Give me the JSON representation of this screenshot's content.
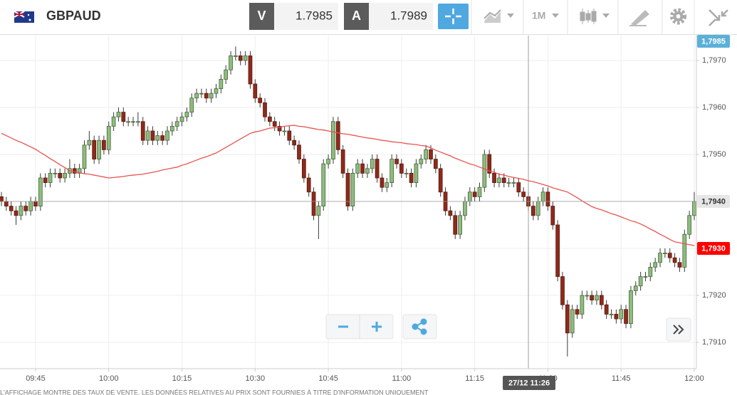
{
  "toolbar": {
    "symbol": "GBPAUD",
    "sell": {
      "label": "V",
      "price": "1.7985"
    },
    "buy": {
      "label": "A",
      "price": "1.7989"
    },
    "timeframe": "1M"
  },
  "chart_data": {
    "type": "candlestick",
    "categories": [
      null,
      null,
      null,
      null,
      null,
      null,
      null,
      "09:45",
      null,
      null,
      null,
      null,
      null,
      null,
      null,
      null,
      null,
      null,
      null,
      null,
      null,
      null,
      "10:00",
      null,
      null,
      null,
      null,
      null,
      null,
      null,
      null,
      null,
      null,
      null,
      null,
      null,
      null,
      "10:15",
      null,
      null,
      null,
      null,
      null,
      null,
      null,
      null,
      null,
      null,
      null,
      null,
      null,
      null,
      "10:30",
      null,
      null,
      null,
      null,
      null,
      null,
      null,
      null,
      null,
      null,
      null,
      null,
      null,
      null,
      "10:45",
      null,
      null,
      null,
      null,
      null,
      null,
      null,
      null,
      null,
      null,
      null,
      null,
      null,
      null,
      "11:00",
      null,
      null,
      null,
      null,
      null,
      null,
      null,
      null,
      null,
      null,
      null,
      null,
      null,
      null,
      "11:15",
      null,
      null,
      null,
      null,
      null,
      null,
      null,
      null,
      null,
      null,
      null,
      null,
      null,
      null,
      "11:30",
      null,
      null,
      null,
      null,
      null,
      null,
      null,
      null,
      null,
      null,
      null,
      null,
      null,
      null,
      "11:45",
      null,
      null,
      null,
      null,
      null,
      null,
      null,
      null,
      null,
      null,
      null,
      null,
      null,
      null,
      "12:00"
    ],
    "ohlc": [
      [
        1.7941,
        1.7942,
        1.7939,
        1.794
      ],
      [
        1.794,
        1.7941,
        1.7938,
        1.7939
      ],
      [
        1.7939,
        1.794,
        1.7937,
        1.7938
      ],
      [
        1.7938,
        1.7939,
        1.7935,
        1.7937
      ],
      [
        1.7937,
        1.794,
        1.7936,
        1.7939
      ],
      [
        1.7939,
        1.794,
        1.7937,
        1.7938
      ],
      [
        1.7938,
        1.7941,
        1.7937,
        1.794
      ],
      [
        1.794,
        1.7941,
        1.7938,
        1.7939
      ],
      [
        1.7939,
        1.7946,
        1.7938,
        1.7945
      ],
      [
        1.7945,
        1.7946,
        1.7943,
        1.7944
      ],
      [
        1.7944,
        1.7947,
        1.7943,
        1.7946
      ],
      [
        1.7946,
        1.7947,
        1.7945,
        1.7946
      ],
      [
        1.7946,
        1.7947,
        1.7944,
        1.7945
      ],
      [
        1.7945,
        1.7947,
        1.7944,
        1.7946
      ],
      [
        1.7946,
        1.7949,
        1.7945,
        1.7947
      ],
      [
        1.7947,
        1.7948,
        1.7945,
        1.7946
      ],
      [
        1.7946,
        1.7948,
        1.7945,
        1.7947
      ],
      [
        1.7947,
        1.7953,
        1.7946,
        1.7952
      ],
      [
        1.7952,
        1.7955,
        1.7951,
        1.7953
      ],
      [
        1.7953,
        1.7954,
        1.7948,
        1.7949
      ],
      [
        1.7949,
        1.7954,
        1.7948,
        1.7953
      ],
      [
        1.7953,
        1.7954,
        1.795,
        1.7951
      ],
      [
        1.7951,
        1.7957,
        1.795,
        1.7956
      ],
      [
        1.7956,
        1.7959,
        1.7955,
        1.7958
      ],
      [
        1.7958,
        1.796,
        1.7957,
        1.7959
      ],
      [
        1.7959,
        1.796,
        1.7956,
        1.7957
      ],
      [
        1.7957,
        1.7958,
        1.7956,
        1.7957
      ],
      [
        1.7957,
        1.7958,
        1.7956,
        1.7957
      ],
      [
        1.7957,
        1.7959,
        1.7956,
        1.7957
      ],
      [
        1.7957,
        1.7958,
        1.7952,
        1.7953
      ],
      [
        1.7953,
        1.7956,
        1.7952,
        1.7955
      ],
      [
        1.7955,
        1.7956,
        1.7952,
        1.7953
      ],
      [
        1.7953,
        1.7955,
        1.7952,
        1.7954
      ],
      [
        1.7954,
        1.7955,
        1.7952,
        1.7953
      ],
      [
        1.7953,
        1.7956,
        1.7952,
        1.7955
      ],
      [
        1.7955,
        1.7957,
        1.7954,
        1.7956
      ],
      [
        1.7956,
        1.7958,
        1.7955,
        1.7957
      ],
      [
        1.7957,
        1.7959,
        1.7956,
        1.7958
      ],
      [
        1.7958,
        1.796,
        1.7957,
        1.7959
      ],
      [
        1.7959,
        1.7963,
        1.7958,
        1.7962
      ],
      [
        1.7962,
        1.7964,
        1.7961,
        1.7963
      ],
      [
        1.7963,
        1.7964,
        1.7962,
        1.7963
      ],
      [
        1.7963,
        1.7964,
        1.7961,
        1.7962
      ],
      [
        1.7962,
        1.7964,
        1.7961,
        1.7963
      ],
      [
        1.7963,
        1.7965,
        1.7962,
        1.7964
      ],
      [
        1.7964,
        1.7967,
        1.7963,
        1.7966
      ],
      [
        1.7966,
        1.7969,
        1.7965,
        1.7968
      ],
      [
        1.7968,
        1.7972,
        1.7967,
        1.7971
      ],
      [
        1.7971,
        1.7973,
        1.797,
        1.7971
      ],
      [
        1.7971,
        1.7972,
        1.7969,
        1.797
      ],
      [
        1.797,
        1.7972,
        1.7969,
        1.7971
      ],
      [
        1.7971,
        1.7972,
        1.7964,
        1.7965
      ],
      [
        1.7965,
        1.7966,
        1.7961,
        1.7962
      ],
      [
        1.7962,
        1.7963,
        1.796,
        1.7961
      ],
      [
        1.7961,
        1.7962,
        1.7957,
        1.7958
      ],
      [
        1.7958,
        1.7959,
        1.7956,
        1.7957
      ],
      [
        1.7957,
        1.7958,
        1.7955,
        1.7956
      ],
      [
        1.7956,
        1.7957,
        1.7954,
        1.7955
      ],
      [
        1.7955,
        1.7956,
        1.7954,
        1.7955
      ],
      [
        1.7955,
        1.7956,
        1.7952,
        1.7953
      ],
      [
        1.7953,
        1.7954,
        1.7951,
        1.7952
      ],
      [
        1.7952,
        1.7953,
        1.7948,
        1.7949
      ],
      [
        1.7949,
        1.795,
        1.7944,
        1.7945
      ],
      [
        1.7945,
        1.7946,
        1.7941,
        1.7942
      ],
      [
        1.7942,
        1.7943,
        1.7936,
        1.7937
      ],
      [
        1.7937,
        1.794,
        1.7932,
        1.7939
      ],
      [
        1.7939,
        1.7949,
        1.7938,
        1.7948
      ],
      [
        1.7948,
        1.795,
        1.7947,
        1.7949
      ],
      [
        1.7949,
        1.7958,
        1.7948,
        1.7957
      ],
      [
        1.7957,
        1.7958,
        1.795,
        1.7951
      ],
      [
        1.7951,
        1.7952,
        1.7945,
        1.7946
      ],
      [
        1.7946,
        1.7947,
        1.7938,
        1.7939
      ],
      [
        1.7939,
        1.7947,
        1.7938,
        1.7946
      ],
      [
        1.7946,
        1.7949,
        1.7945,
        1.7948
      ],
      [
        1.7948,
        1.7949,
        1.7945,
        1.7946
      ],
      [
        1.7946,
        1.7948,
        1.7945,
        1.7947
      ],
      [
        1.7947,
        1.795,
        1.7946,
        1.7949
      ],
      [
        1.7949,
        1.795,
        1.7944,
        1.7945
      ],
      [
        1.7945,
        1.7946,
        1.7942,
        1.7943
      ],
      [
        1.7943,
        1.7945,
        1.7942,
        1.7944
      ],
      [
        1.7944,
        1.795,
        1.7943,
        1.7949
      ],
      [
        1.7949,
        1.795,
        1.7947,
        1.7948
      ],
      [
        1.7948,
        1.7949,
        1.7945,
        1.7946
      ],
      [
        1.7946,
        1.7947,
        1.7945,
        1.7946
      ],
      [
        1.7946,
        1.7947,
        1.7943,
        1.7944
      ],
      [
        1.7944,
        1.7949,
        1.7943,
        1.7948
      ],
      [
        1.7948,
        1.795,
        1.7947,
        1.7949
      ],
      [
        1.7949,
        1.7952,
        1.7948,
        1.7951
      ],
      [
        1.7951,
        1.7952,
        1.7948,
        1.7949
      ],
      [
        1.7949,
        1.795,
        1.7946,
        1.7947
      ],
      [
        1.7947,
        1.7948,
        1.7941,
        1.7942
      ],
      [
        1.7942,
        1.7943,
        1.7937,
        1.7938
      ],
      [
        1.7938,
        1.7939,
        1.7936,
        1.7937
      ],
      [
        1.7937,
        1.7938,
        1.7932,
        1.7933
      ],
      [
        1.7933,
        1.7938,
        1.7932,
        1.7937
      ],
      [
        1.7937,
        1.7941,
        1.7936,
        1.794
      ],
      [
        1.794,
        1.7943,
        1.7939,
        1.7942
      ],
      [
        1.7942,
        1.7943,
        1.794,
        1.7941
      ],
      [
        1.7941,
        1.7944,
        1.794,
        1.7943
      ],
      [
        1.7943,
        1.7951,
        1.7942,
        1.795
      ],
      [
        1.795,
        1.7951,
        1.7945,
        1.7946
      ],
      [
        1.7946,
        1.7947,
        1.7943,
        1.7944
      ],
      [
        1.7944,
        1.7946,
        1.7943,
        1.7945
      ],
      [
        1.7945,
        1.7946,
        1.7943,
        1.7944
      ],
      [
        1.7944,
        1.7945,
        1.7943,
        1.7944
      ],
      [
        1.7944,
        1.7945,
        1.7943,
        1.7944
      ],
      [
        1.7944,
        1.7945,
        1.7941,
        1.7942
      ],
      [
        1.7942,
        1.7943,
        1.794,
        1.7941
      ],
      [
        1.7941,
        1.7942,
        1.7938,
        1.7939
      ],
      [
        1.7939,
        1.794,
        1.7936,
        1.7937
      ],
      [
        1.7937,
        1.7941,
        1.7936,
        1.794
      ],
      [
        1.794,
        1.7943,
        1.7939,
        1.7942
      ],
      [
        1.7942,
        1.7943,
        1.7938,
        1.7939
      ],
      [
        1.7939,
        1.794,
        1.7934,
        1.7935
      ],
      [
        1.7935,
        1.7936,
        1.7923,
        1.7924
      ],
      [
        1.7924,
        1.7925,
        1.7917,
        1.7918
      ],
      [
        1.7918,
        1.7919,
        1.7907,
        1.7912
      ],
      [
        1.7912,
        1.7918,
        1.7911,
        1.7917
      ],
      [
        1.7917,
        1.7918,
        1.7915,
        1.7916
      ],
      [
        1.7916,
        1.7921,
        1.7915,
        1.792
      ],
      [
        1.792,
        1.7921,
        1.7919,
        1.792
      ],
      [
        1.792,
        1.7921,
        1.7918,
        1.7919
      ],
      [
        1.7919,
        1.7921,
        1.7918,
        1.792
      ],
      [
        1.792,
        1.7921,
        1.7917,
        1.7918
      ],
      [
        1.7918,
        1.7919,
        1.7915,
        1.7916
      ],
      [
        1.7916,
        1.7917,
        1.7915,
        1.7916
      ],
      [
        1.7916,
        1.7917,
        1.7914,
        1.7915
      ],
      [
        1.7915,
        1.7918,
        1.7914,
        1.7917
      ],
      [
        1.7917,
        1.7918,
        1.7913,
        1.7914
      ],
      [
        1.7914,
        1.7922,
        1.7913,
        1.7921
      ],
      [
        1.7921,
        1.7923,
        1.792,
        1.7922
      ],
      [
        1.7922,
        1.7925,
        1.7921,
        1.7924
      ],
      [
        1.7924,
        1.7925,
        1.7923,
        1.7924
      ],
      [
        1.7924,
        1.7927,
        1.7923,
        1.7926
      ],
      [
        1.7926,
        1.7928,
        1.7925,
        1.7927
      ],
      [
        1.7927,
        1.793,
        1.7926,
        1.7929
      ],
      [
        1.7929,
        1.793,
        1.7928,
        1.7929
      ],
      [
        1.7929,
        1.793,
        1.7927,
        1.7928
      ],
      [
        1.7928,
        1.7929,
        1.7926,
        1.7927
      ],
      [
        1.7927,
        1.7928,
        1.7925,
        1.7926
      ],
      [
        1.7926,
        1.7934,
        1.7925,
        1.7933
      ],
      [
        1.7933,
        1.7938,
        1.7932,
        1.7937
      ],
      [
        1.7937,
        1.7942,
        1.7936,
        1.794
      ]
    ],
    "up_color": "#8fbc7f",
    "down_color": "#8e2a1b",
    "series": [
      {
        "color": "#e8534f",
        "values": [
          1.79545,
          1.7954,
          1.79535,
          1.7953,
          1.79526,
          1.79521,
          1.79516,
          1.79511,
          1.79504,
          1.79498,
          1.79491,
          1.79485,
          1.79478,
          1.79472,
          1.79465,
          1.79463,
          1.79461,
          1.79459,
          1.79458,
          1.79456,
          1.79454,
          1.79452,
          1.7945,
          1.79451,
          1.79452,
          1.79453,
          1.79455,
          1.79456,
          1.79457,
          1.79458,
          1.7946,
          1.79462,
          1.79464,
          1.79467,
          1.79469,
          1.79471,
          1.79473,
          1.79477,
          1.7948,
          1.79484,
          1.79488,
          1.79492,
          1.79495,
          1.79499,
          1.79503,
          1.79509,
          1.79515,
          1.79521,
          1.79527,
          1.79533,
          1.79539,
          1.79545,
          1.79548,
          1.7955,
          1.79553,
          1.79556,
          1.79557,
          1.79558,
          1.7956,
          1.79561,
          1.79562,
          1.7956,
          1.79559,
          1.79557,
          1.79555,
          1.79553,
          1.79552,
          1.7955,
          1.79548,
          1.79546,
          1.79544,
          1.79543,
          1.79541,
          1.79539,
          1.79537,
          1.79535,
          1.79534,
          1.79532,
          1.7953,
          1.79529,
          1.79527,
          1.79526,
          1.79525,
          1.79523,
          1.79522,
          1.79521,
          1.79519,
          1.79518,
          1.79514,
          1.79509,
          1.79505,
          1.79501,
          1.79497,
          1.79492,
          1.79488,
          1.79484,
          1.7948,
          1.79477,
          1.79473,
          1.79469,
          1.79465,
          1.79462,
          1.79458,
          1.79456,
          1.79453,
          1.79451,
          1.79449,
          1.79447,
          1.79444,
          1.79442,
          1.79439,
          1.79436,
          1.79433,
          1.79429,
          1.79426,
          1.79423,
          1.7942,
          1.79414,
          1.79408,
          1.79401,
          1.79395,
          1.79389,
          1.79385,
          1.79382,
          1.79378,
          1.79374,
          1.79371,
          1.79367,
          1.79363,
          1.79359,
          1.79356,
          1.79352,
          1.79347,
          1.79341,
          1.79336,
          1.7933,
          1.79325,
          1.79319,
          1.79314,
          1.79312,
          1.7931,
          1.79308,
          1.79306
        ]
      }
    ],
    "ylim": [
      1.79044,
      1.79753
    ],
    "yticks": [
      {
        "value": 1.791,
        "label": "1,7910"
      },
      {
        "value": 1.792,
        "label": "1,7920"
      },
      {
        "value": 1.793,
        "label": "1,7930"
      },
      {
        "value": 1.794,
        "label": "1,7940"
      },
      {
        "value": 1.795,
        "label": "1,7950"
      },
      {
        "value": 1.796,
        "label": "1,7960"
      },
      {
        "value": 1.797,
        "label": "1,7970"
      }
    ],
    "grid": true,
    "price_tags": [
      {
        "value": 1.793,
        "label": "1,7930",
        "color": "#ff0000"
      },
      {
        "value": 1.7985,
        "label": "1,7985",
        "color": "#5bb0d8"
      }
    ],
    "crosshair": {
      "label": "27/12 11:26",
      "y": {
        "value": 1.794,
        "label": "1,7940"
      }
    }
  },
  "disclaimer": "L'AFFICHAGE MONTRE DES TAUX DE VENTE. LES DONNÉES RELATIVES AU PRIX SONT FOURNIES À TITRE D'INFORMATION UNIQUEMENT"
}
